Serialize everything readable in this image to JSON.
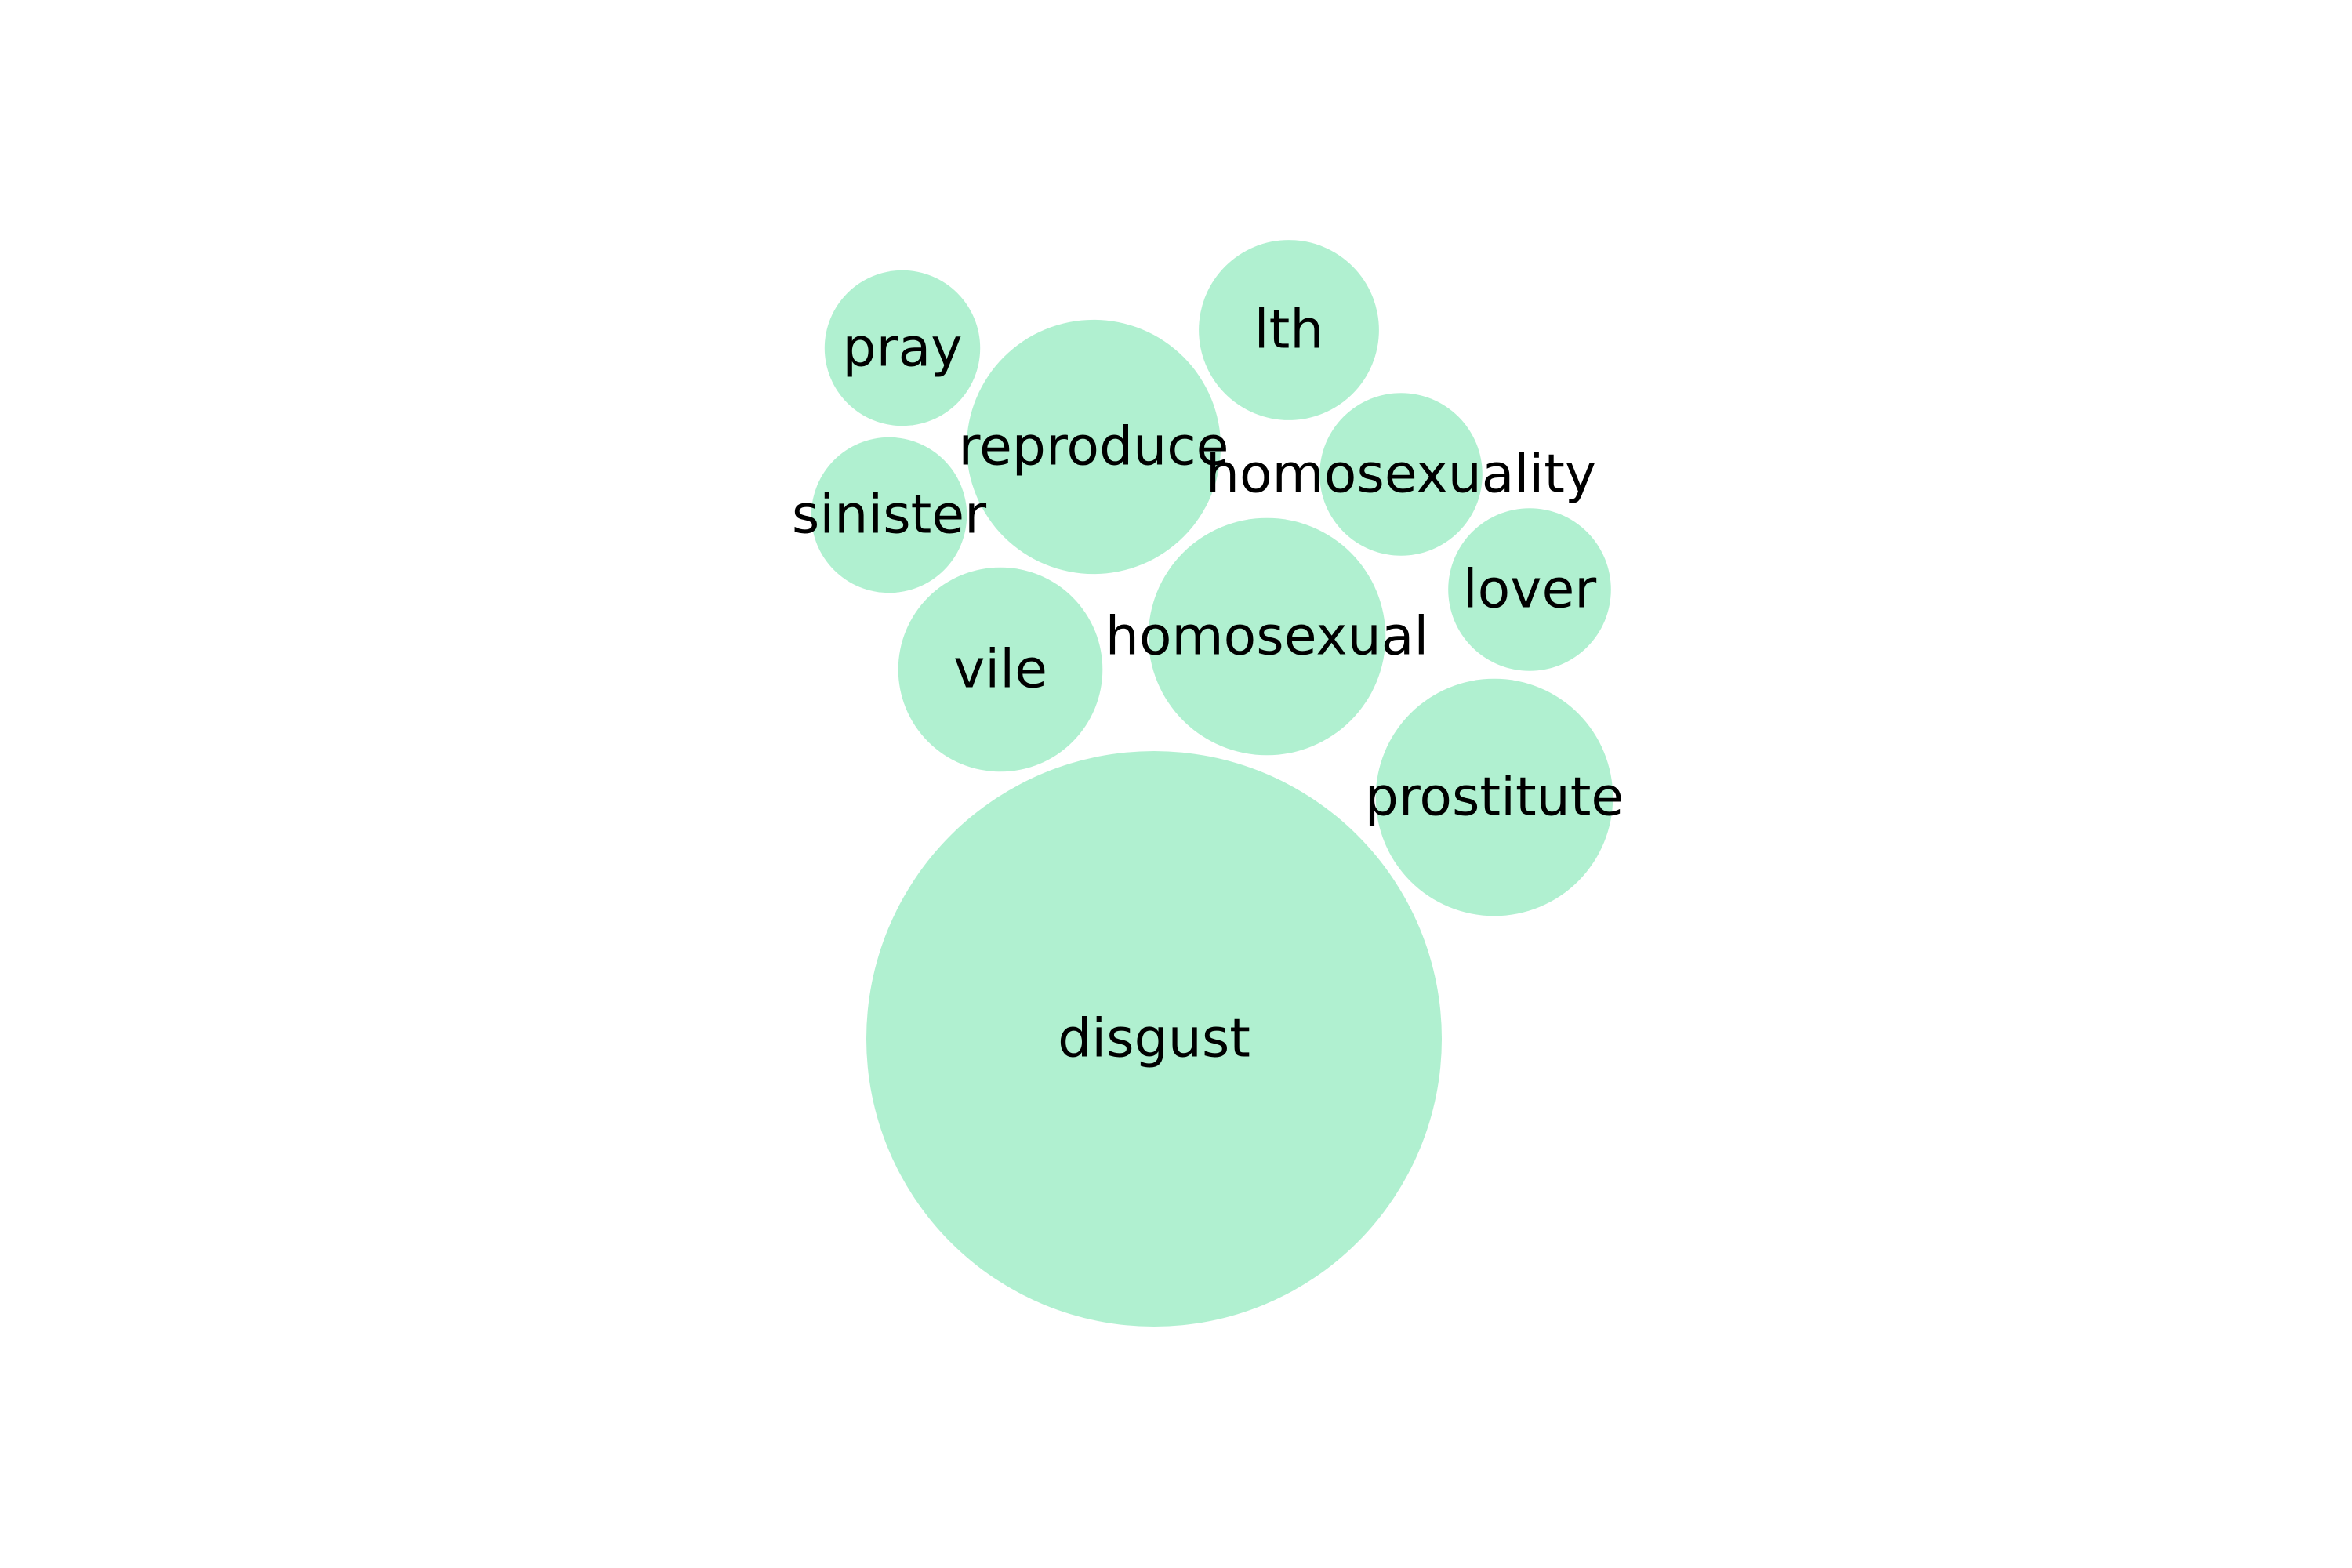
{
  "chart_data": {
    "type": "bubble",
    "colors": {
      "bubble_fill": "#b0f0d0",
      "label": "#000000",
      "background": "#ffffff"
    },
    "bubbles": [
      {
        "label": "disgust",
        "value": 100
      },
      {
        "label": "homosexual",
        "value": 17
      },
      {
        "label": "prostitute",
        "value": 17
      },
      {
        "label": "reproduce",
        "value": 19.5
      },
      {
        "label": "vile",
        "value": 12.6
      },
      {
        "label": "lth",
        "value": 9.8
      },
      {
        "label": "homosexuality",
        "value": 8
      },
      {
        "label": "lover",
        "value": 8
      },
      {
        "label": "pray",
        "value": 7.3
      },
      {
        "label": "sinister",
        "value": 7.3
      }
    ]
  }
}
